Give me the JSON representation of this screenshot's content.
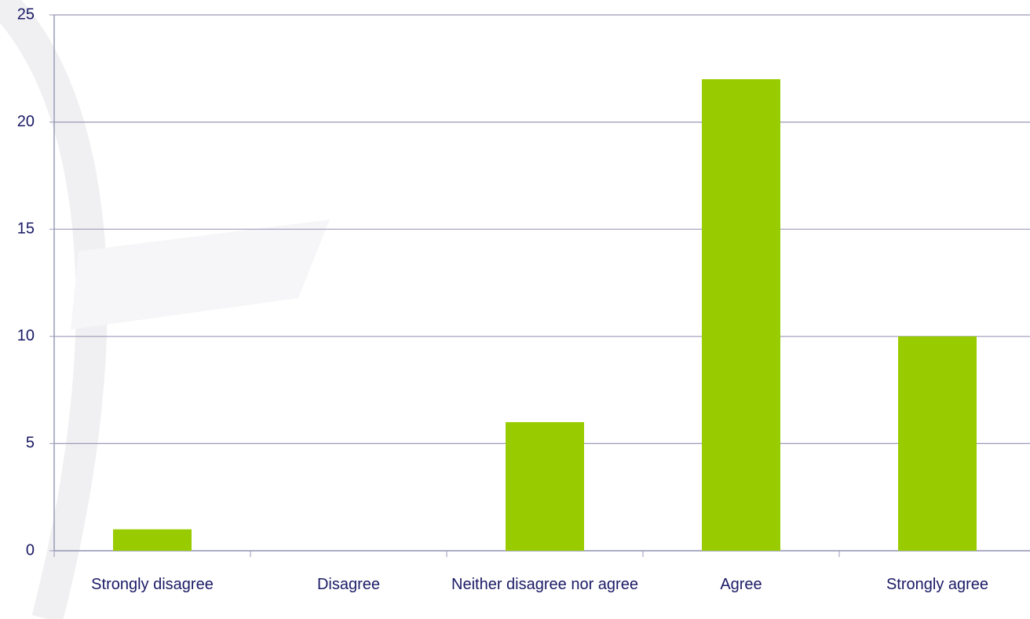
{
  "chart_data": {
    "type": "bar",
    "categories": [
      "Strongly disagree",
      "Disagree",
      "Neither disagree nor agree",
      "Agree",
      "Strongly agree"
    ],
    "values": [
      1,
      0,
      6,
      22,
      10
    ],
    "color": "#99cc00",
    "ylim": [
      0,
      25
    ],
    "yticks": [
      0,
      5,
      10,
      15,
      20,
      25
    ],
    "grid": true
  }
}
